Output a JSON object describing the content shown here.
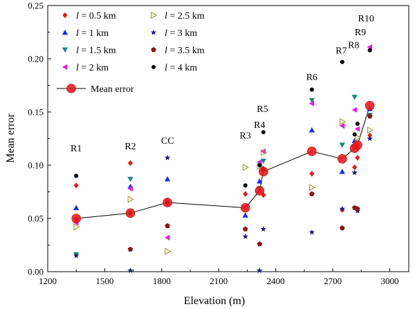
{
  "chart_data": {
    "type": "scatter",
    "xlabel": "Elevation (m)",
    "ylabel": "Mean error",
    "xlim": [
      1200,
      3100
    ],
    "ylim": [
      0,
      0.25
    ],
    "x_ticks": [
      1200,
      1500,
      1800,
      2100,
      2400,
      2700,
      3000
    ],
    "y_ticks": [
      0.0,
      0.05,
      0.1,
      0.15,
      0.2,
      0.25
    ],
    "y_tick_labels": [
      "0.00",
      "0.05",
      "0.10",
      "0.15",
      "0.20",
      "0.25"
    ],
    "legend_placement": "top-left",
    "grid": false,
    "stations": [
      {
        "name": "R1",
        "x": 1350,
        "label_y": 0.113
      },
      {
        "name": "R2",
        "x": 1635,
        "label_y": 0.115
      },
      {
        "name": "CC",
        "x": 1830,
        "label_y": 0.12
      },
      {
        "name": "R3",
        "x": 2240,
        "label_y": 0.125
      },
      {
        "name": "R4",
        "x": 2315,
        "label_y": 0.135
      },
      {
        "name": "R5",
        "x": 2330,
        "label_y": 0.15
      },
      {
        "name": "R6",
        "x": 2590,
        "label_y": 0.18
      },
      {
        "name": "R7",
        "x": 2745,
        "label_y": 0.205
      },
      {
        "name": "R8",
        "x": 2810,
        "label_y": 0.21
      },
      {
        "name": "R9",
        "x": 2845,
        "label_y": 0.222
      },
      {
        "name": "R10",
        "x": 2875,
        "label_y": 0.235
      }
    ],
    "series": [
      {
        "legend_prefix": "l",
        "legend_value": " = 0.5 km",
        "marker": "diamond",
        "color": "#e0201b",
        "points": [
          [
            1350,
            0.081
          ],
          [
            1635,
            0.102
          ],
          [
            1830,
            0.066
          ],
          [
            2240,
            0.073
          ],
          [
            2315,
            0.076
          ],
          [
            2335,
            0.072
          ],
          [
            2590,
            0.092
          ],
          [
            2750,
            0.058
          ],
          [
            2815,
            0.098
          ],
          [
            2830,
            0.107
          ],
          [
            2895,
            0.128
          ]
        ]
      },
      {
        "legend_prefix": "l",
        "legend_value": " = 1 km",
        "marker": "triangle-up",
        "color": "#1c2fe0",
        "points": [
          [
            1350,
            0.06
          ],
          [
            1635,
            0.08
          ],
          [
            1830,
            0.087
          ],
          [
            2240,
            0.053
          ],
          [
            2315,
            0.085
          ],
          [
            2335,
            0.097
          ],
          [
            2590,
            0.133
          ],
          [
            2750,
            0.094
          ],
          [
            2815,
            0.123
          ],
          [
            2830,
            0.117
          ],
          [
            2895,
            0.153
          ]
        ]
      },
      {
        "legend_prefix": "l",
        "legend_value": " = 1.5 km",
        "marker": "triangle-down",
        "color": "#1a8a7a",
        "points": [
          [
            1350,
            0.016
          ],
          [
            1635,
            0.087
          ],
          [
            1830,
            0.065
          ],
          [
            2240,
            0.06
          ],
          [
            2315,
            0.078
          ],
          [
            2335,
            0.104
          ],
          [
            2590,
            0.161
          ],
          [
            2750,
            0.119
          ],
          [
            2815,
            0.164
          ],
          [
            2830,
            0.118
          ],
          [
            2895,
            0.147
          ]
        ]
      },
      {
        "legend_prefix": "l",
        "legend_value": " = 2 km",
        "marker": "triangle-left",
        "color": "#e020e0",
        "points": [
          [
            1350,
            0.046
          ],
          [
            1635,
            0.078
          ],
          [
            1830,
            0.032
          ],
          [
            2240,
            0.061
          ],
          [
            2315,
            0.103
          ],
          [
            2335,
            0.113
          ],
          [
            2590,
            0.158
          ],
          [
            2750,
            0.137
          ],
          [
            2815,
            0.152
          ],
          [
            2830,
            0.134
          ],
          [
            2895,
            0.211
          ]
        ]
      },
      {
        "legend_prefix": "l",
        "legend_value": " = 2.5 km",
        "marker": "triangle-right-open",
        "color": "#9a9a2a",
        "points": [
          [
            1350,
            0.042
          ],
          [
            1635,
            0.068
          ],
          [
            1830,
            0.019
          ],
          [
            2240,
            0.098
          ],
          [
            2315,
            0.099
          ],
          [
            2335,
            0.112
          ],
          [
            2590,
            0.079
          ],
          [
            2750,
            0.141
          ],
          [
            2815,
            0.116
          ],
          [
            2830,
            0.126
          ],
          [
            2895,
            0.133
          ]
        ]
      },
      {
        "legend_prefix": "l",
        "legend_value": " = 3 km",
        "marker": "star",
        "color": "#1a1a7a",
        "points": [
          [
            1350,
            0.015
          ],
          [
            1635,
            0.001
          ],
          [
            1830,
            0.107
          ],
          [
            2240,
            0.033
          ],
          [
            2315,
            0.001
          ],
          [
            2335,
            0.04
          ],
          [
            2590,
            0.037
          ],
          [
            2750,
            0.059
          ],
          [
            2815,
            0.093
          ],
          [
            2830,
            0.057
          ],
          [
            2895,
            0.125
          ]
        ]
      },
      {
        "legend_prefix": "l",
        "legend_value": " = 3.5 km",
        "marker": "pentagon",
        "color": "#8a1515",
        "points": [
          [
            1350,
            0.049
          ],
          [
            1635,
            0.021
          ],
          [
            1830,
            0.043
          ],
          [
            2240,
            0.04
          ],
          [
            2315,
            0.026
          ],
          [
            2335,
            0.096
          ],
          [
            2590,
            0.073
          ],
          [
            2750,
            0.041
          ],
          [
            2815,
            0.06
          ],
          [
            2830,
            0.059
          ],
          [
            2895,
            0.146
          ]
        ]
      },
      {
        "legend_prefix": "l",
        "legend_value": " = 4 km",
        "marker": "circle",
        "color": "#000000",
        "points": [
          [
            1350,
            0.09
          ],
          [
            1635,
            0.055
          ],
          [
            1830,
            0.064
          ],
          [
            2240,
            0.081
          ],
          [
            2315,
            0.1
          ],
          [
            2335,
            0.131
          ],
          [
            2590,
            0.171
          ],
          [
            2750,
            0.197
          ],
          [
            2815,
            0.129
          ],
          [
            2830,
            0.139
          ],
          [
            2895,
            0.208
          ]
        ]
      }
    ],
    "mean_series": {
      "legend_label": "Mean error",
      "color": "#e81818",
      "points": [
        [
          1350,
          0.05
        ],
        [
          1635,
          0.055
        ],
        [
          1830,
          0.065
        ],
        [
          2240,
          0.06
        ],
        [
          2315,
          0.076
        ],
        [
          2335,
          0.094
        ],
        [
          2590,
          0.113
        ],
        [
          2750,
          0.106
        ],
        [
          2815,
          0.116
        ],
        [
          2830,
          0.119
        ],
        [
          2895,
          0.156
        ]
      ]
    }
  }
}
